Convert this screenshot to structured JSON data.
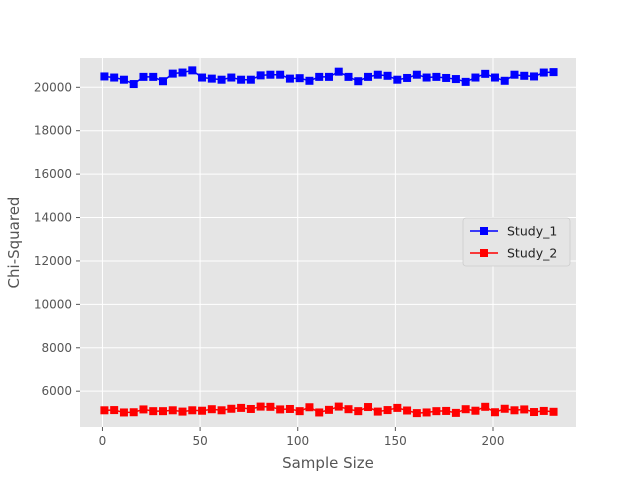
{
  "chart_data": {
    "type": "line",
    "title": "",
    "xlabel": "Sample Size",
    "ylabel": "Chi-Squared",
    "xlim": [
      -11.5,
      242.5
    ],
    "ylim": [
      4350,
      21350
    ],
    "xticks": [
      0,
      50,
      100,
      150,
      200
    ],
    "yticks": [
      6000,
      8000,
      10000,
      12000,
      14000,
      16000,
      18000,
      20000
    ],
    "grid": true,
    "style": "ggplot",
    "legend_position": "center-right",
    "marker": "square",
    "x": [
      1,
      6,
      11,
      16,
      21,
      26,
      31,
      36,
      41,
      46,
      51,
      56,
      61,
      66,
      71,
      76,
      81,
      86,
      91,
      96,
      101,
      106,
      111,
      116,
      121,
      126,
      131,
      136,
      141,
      146,
      151,
      156,
      161,
      166,
      171,
      176,
      181,
      186,
      191,
      196,
      201,
      206,
      211,
      216,
      221,
      226,
      231
    ],
    "series": [
      {
        "name": "Study_1",
        "color": "#0000ff",
        "values": [
          20500,
          20450,
          20350,
          20150,
          20480,
          20480,
          20280,
          20630,
          20680,
          20780,
          20450,
          20400,
          20350,
          20450,
          20350,
          20350,
          20550,
          20580,
          20580,
          20400,
          20420,
          20300,
          20480,
          20480,
          20720,
          20480,
          20280,
          20480,
          20580,
          20530,
          20350,
          20430,
          20580,
          20450,
          20480,
          20430,
          20380,
          20250,
          20450,
          20620,
          20450,
          20300,
          20580,
          20530,
          20500,
          20680,
          20700
        ]
      },
      {
        "name": "Study_2",
        "color": "#ff0000",
        "values": [
          5120,
          5130,
          5020,
          5030,
          5160,
          5080,
          5080,
          5120,
          5060,
          5120,
          5100,
          5170,
          5120,
          5190,
          5230,
          5180,
          5290,
          5280,
          5160,
          5180,
          5080,
          5260,
          5020,
          5140,
          5290,
          5170,
          5080,
          5270,
          5060,
          5130,
          5230,
          5110,
          4990,
          5020,
          5080,
          5090,
          5000,
          5170,
          5100,
          5280,
          5030,
          5190,
          5120,
          5160,
          5040,
          5090,
          5050
        ]
      }
    ]
  }
}
